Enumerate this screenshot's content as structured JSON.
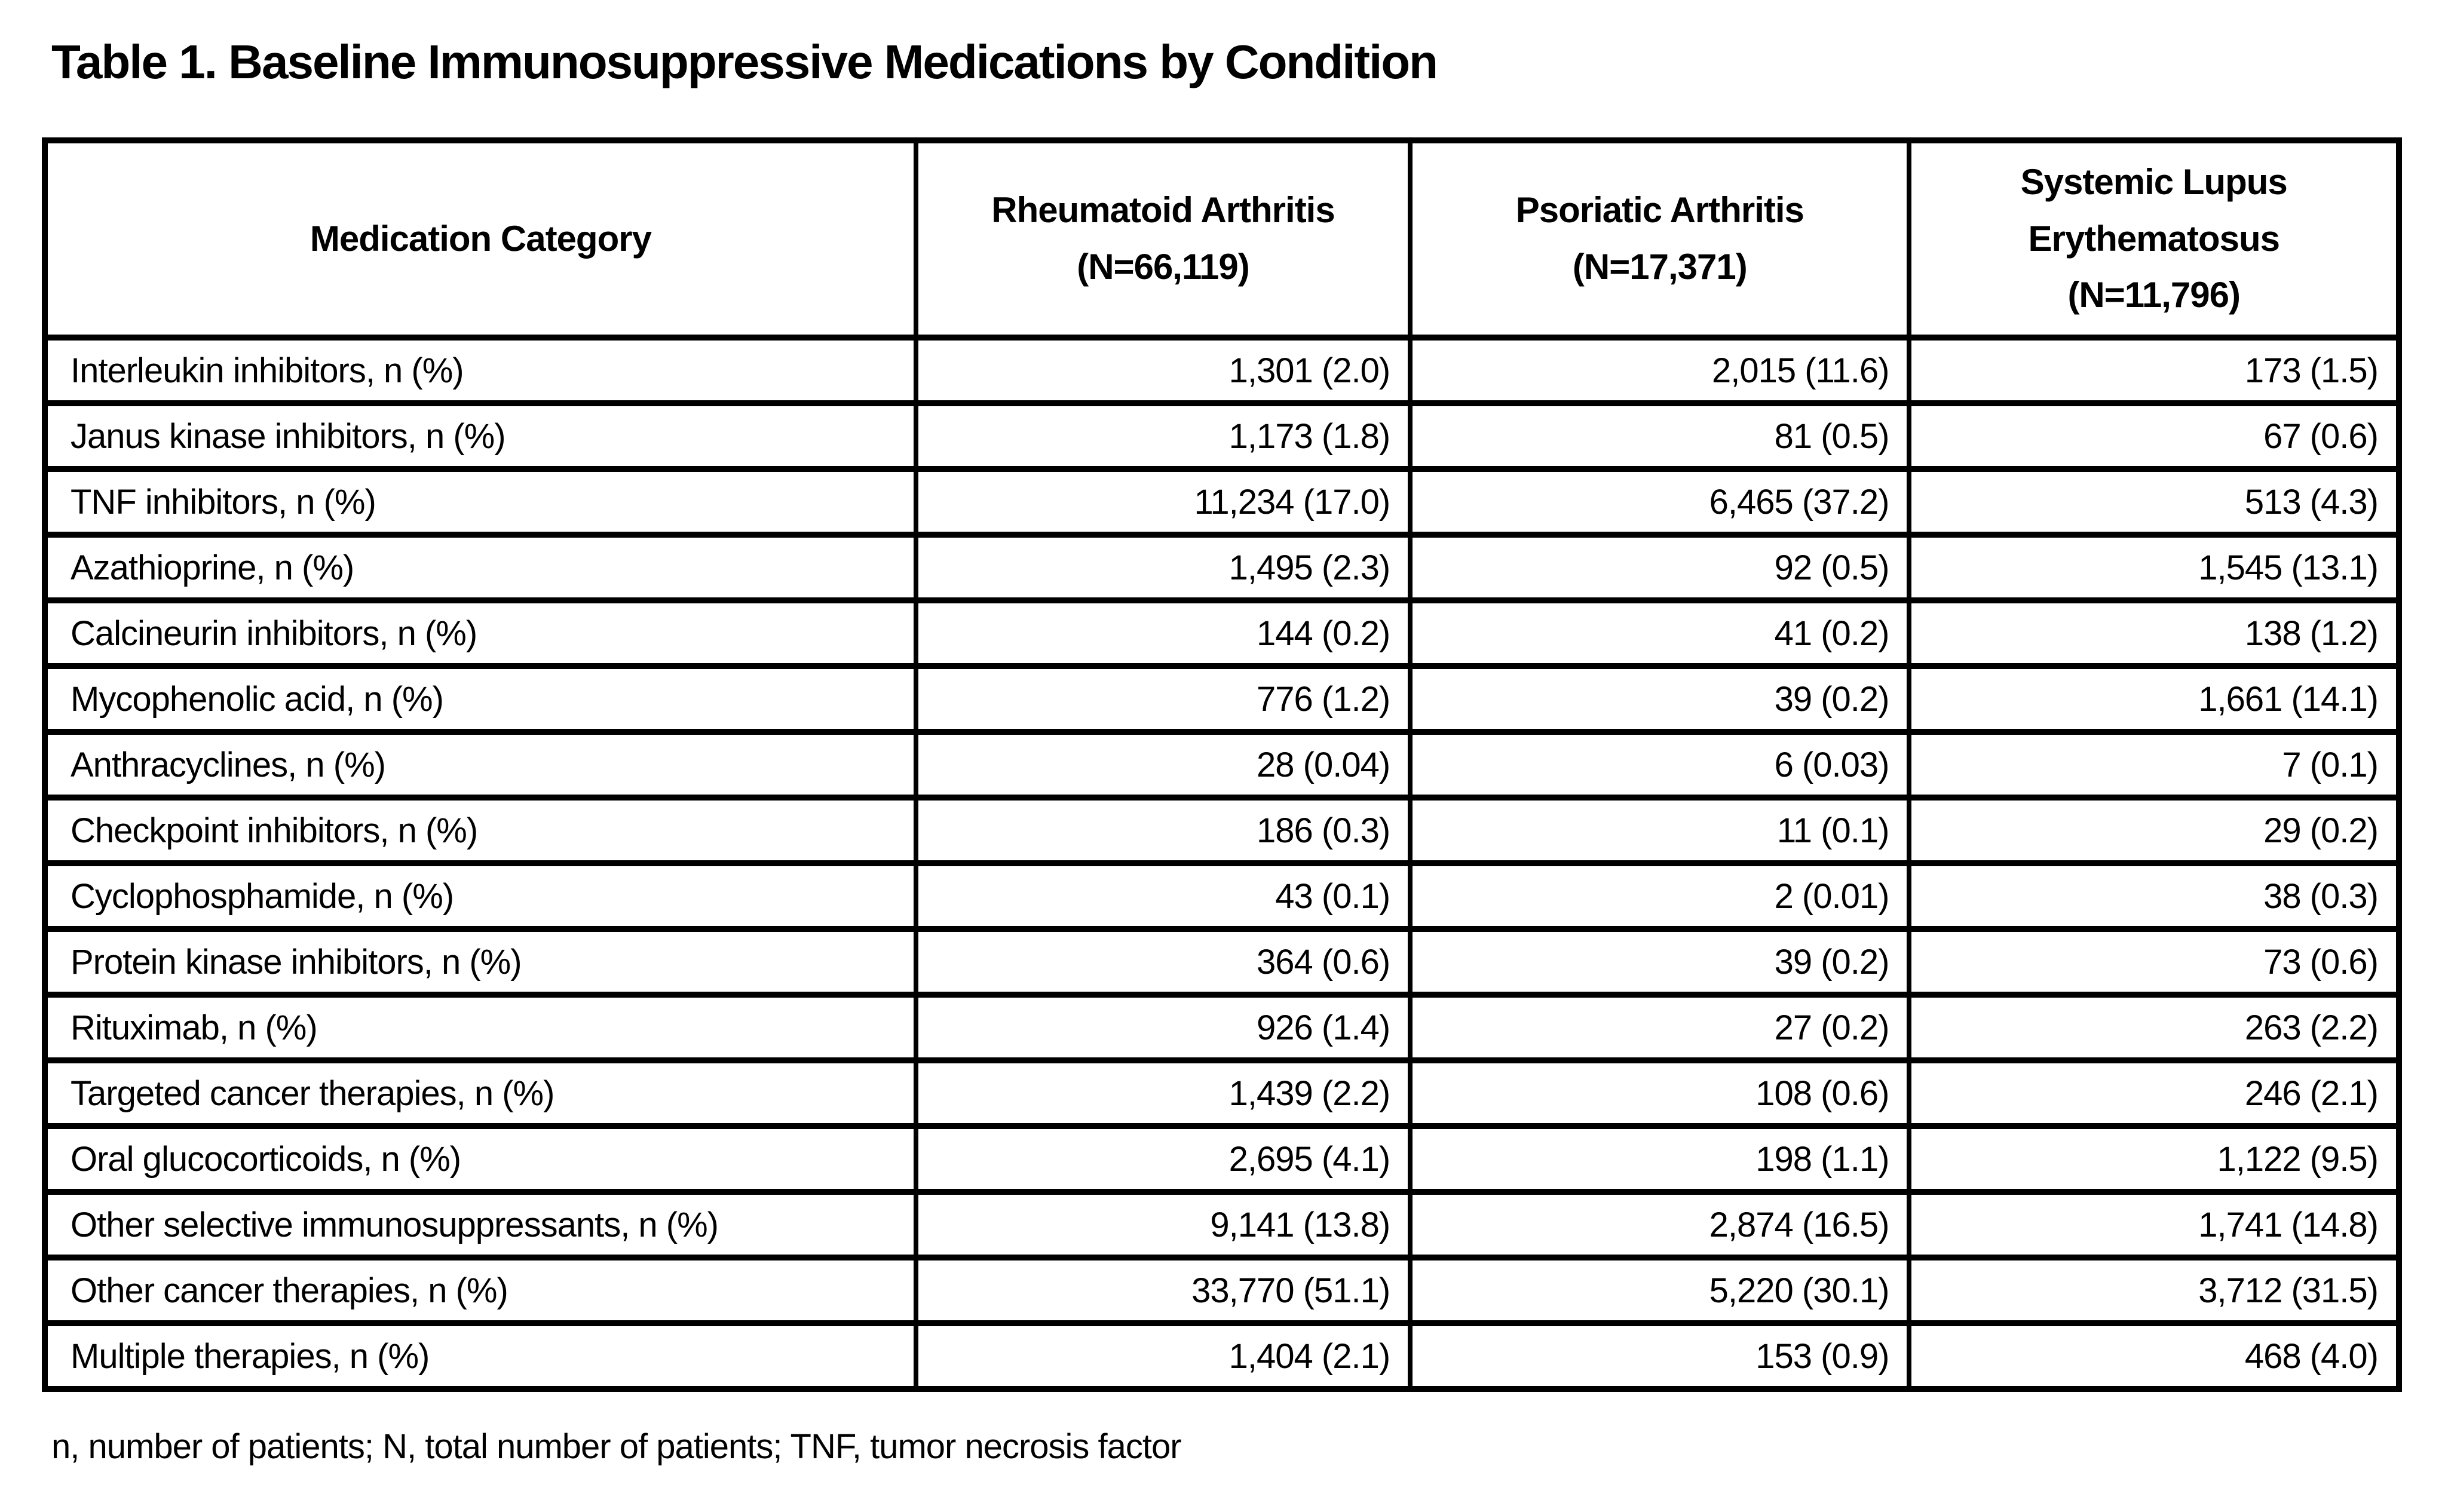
{
  "page": {
    "background_color": "#ffffff",
    "text_color": "#000000",
    "border_color": "#000000"
  },
  "title": "Table 1. Baseline Immunosuppressive Medications by Condition",
  "table": {
    "columns": [
      {
        "label": "Medication Category"
      },
      {
        "label": "Rheumatoid Arthritis",
        "sublabel": "(N=66,119)"
      },
      {
        "label": "Psoriatic Arthritis",
        "sublabel": "(N=17,371)"
      },
      {
        "label": "Systemic Lupus Erythematosus",
        "sublabel": "(N=11,796)"
      }
    ],
    "rows": [
      {
        "category": "Interleukin inhibitors, n (%)",
        "ra": "1,301 (2.0)",
        "psa": "2,015 (11.6)",
        "sle": "173 (1.5)"
      },
      {
        "category": "Janus kinase inhibitors, n (%)",
        "ra": "1,173 (1.8)",
        "psa": "81 (0.5)",
        "sle": "67 (0.6)"
      },
      {
        "category": "TNF inhibitors, n (%)",
        "ra": "11,234 (17.0)",
        "psa": "6,465 (37.2)",
        "sle": "513 (4.3)"
      },
      {
        "category": "Azathioprine, n (%)",
        "ra": "1,495 (2.3)",
        "psa": "92 (0.5)",
        "sle": "1,545 (13.1)"
      },
      {
        "category": "Calcineurin inhibitors, n (%)",
        "ra": "144 (0.2)",
        "psa": "41 (0.2)",
        "sle": "138 (1.2)"
      },
      {
        "category": "Mycophenolic acid, n (%)",
        "ra": "776 (1.2)",
        "psa": "39 (0.2)",
        "sle": "1,661 (14.1)"
      },
      {
        "category": "Anthracyclines, n (%)",
        "ra": "28 (0.04)",
        "psa": "6 (0.03)",
        "sle": "7 (0.1)"
      },
      {
        "category": "Checkpoint inhibitors, n (%)",
        "ra": "186 (0.3)",
        "psa": "11 (0.1)",
        "sle": "29 (0.2)"
      },
      {
        "category": "Cyclophosphamide, n (%)",
        "ra": "43 (0.1)",
        "psa": "2 (0.01)",
        "sle": "38 (0.3)"
      },
      {
        "category": "Protein kinase inhibitors, n (%)",
        "ra": "364 (0.6)",
        "psa": "39 (0.2)",
        "sle": "73 (0.6)"
      },
      {
        "category": "Rituximab, n (%)",
        "ra": "926 (1.4)",
        "psa": "27 (0.2)",
        "sle": "263 (2.2)"
      },
      {
        "category": "Targeted cancer therapies, n (%)",
        "ra": "1,439 (2.2)",
        "psa": "108 (0.6)",
        "sle": "246 (2.1)"
      },
      {
        "category": "Oral glucocorticoids, n (%)",
        "ra": "2,695 (4.1)",
        "psa": "198 (1.1)",
        "sle": "1,122 (9.5)"
      },
      {
        "category": "Other selective immunosuppressants, n (%)",
        "ra": "9,141 (13.8)",
        "psa": "2,874 (16.5)",
        "sle": "1,741 (14.8)"
      },
      {
        "category": "Other cancer therapies, n (%)",
        "ra": "33,770 (51.1)",
        "psa": "5,220 (30.1)",
        "sle": "3,712 (31.5)"
      },
      {
        "category": "Multiple therapies, n (%)",
        "ra": "1,404 (2.1)",
        "psa": "153 (0.9)",
        "sle": "468 (4.0)"
      }
    ]
  },
  "footnote": "n, number of patients; N, total number of patients; TNF, tumor necrosis factor"
}
